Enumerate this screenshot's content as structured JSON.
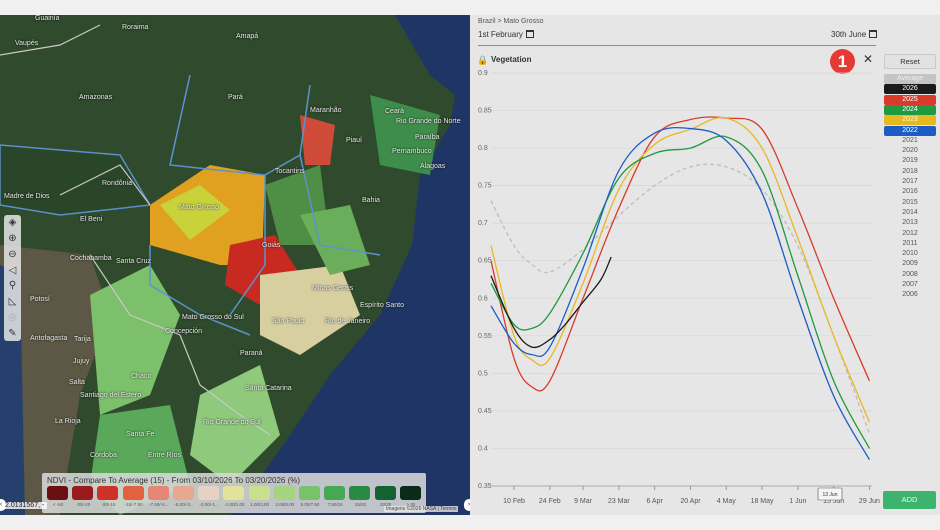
{
  "map": {
    "labels": [
      {
        "text": "Amazonas",
        "cls": "a"
      },
      {
        "text": "Pará",
        "cls": "b"
      },
      {
        "text": "Amapá",
        "cls": "c"
      },
      {
        "text": "Roraima",
        "cls": "d"
      },
      {
        "text": "Maranhão",
        "cls": "e"
      },
      {
        "text": "Piauí",
        "cls": "f"
      },
      {
        "text": "Ceará",
        "cls": "g"
      },
      {
        "text": "Rio Grande do Norte",
        "cls": "h"
      },
      {
        "text": "Paraíba",
        "cls": "i"
      },
      {
        "text": "Pernambuco",
        "cls": "j"
      },
      {
        "text": "Alagoas",
        "cls": "k"
      },
      {
        "text": "Bahia",
        "cls": "l"
      },
      {
        "text": "Tocantins",
        "cls": "m"
      },
      {
        "text": "Mato Grosso",
        "cls": "n"
      },
      {
        "text": "Rondônia",
        "cls": "o"
      },
      {
        "text": "El Beni",
        "cls": "p"
      },
      {
        "text": "Madre de Dios",
        "cls": "q"
      },
      {
        "text": "Goiás",
        "cls": "r"
      },
      {
        "text": "Minas Gerais",
        "cls": "s"
      },
      {
        "text": "Espírito Santo",
        "cls": "t"
      },
      {
        "text": "Mato Grosso do Sul",
        "cls": "u"
      },
      {
        "text": "São Paulo",
        "cls": "v"
      },
      {
        "text": "Rio de Janeiro",
        "cls": "w"
      },
      {
        "text": "Paraná",
        "cls": "x"
      },
      {
        "text": "Santa Catarina",
        "cls": "y"
      },
      {
        "text": "Rio Grande do Sul",
        "cls": "z"
      },
      {
        "text": "Santiago del Estero",
        "cls": "aa"
      },
      {
        "text": "Chaco",
        "cls": "ab"
      },
      {
        "text": "Santa Fe",
        "cls": "ac"
      },
      {
        "text": "Córdoba",
        "cls": "ad"
      },
      {
        "text": "La Rioja",
        "cls": "ae"
      },
      {
        "text": "Salta",
        "cls": "af"
      },
      {
        "text": "Jujuy",
        "cls": "ag"
      },
      {
        "text": "Antofagasta",
        "cls": "ah"
      },
      {
        "text": "Potosí",
        "cls": "ai"
      },
      {
        "text": "Tarija",
        "cls": "aj"
      },
      {
        "text": "Santa Cruz",
        "cls": "ak"
      },
      {
        "text": "Cochabamba",
        "cls": "al"
      },
      {
        "text": "Vaupés",
        "cls": "am"
      },
      {
        "text": "Guainía",
        "cls": "an"
      },
      {
        "text": "Concepción",
        "cls": "ao"
      },
      {
        "text": "Entre Ríos",
        "cls": "ap"
      }
    ],
    "toolbar": [
      "layers-icon",
      "zoom-in-icon",
      "zoom-out-icon",
      "navigate-icon",
      "search-icon",
      "measure-icon",
      "locate-icon",
      "draw-icon"
    ],
    "coords": "2.0131567, -",
    "attribution": "Imagens ©2026 NASA | Termos",
    "legend": {
      "title": "NDVI - Compare To Average (15) - From 03/10/2026 To 03/20/2026 (%)",
      "items": [
        {
          "label": "< -50",
          "color": "#6b0f12"
        },
        {
          "label": "-30/-20",
          "color": "#9b1a1c"
        },
        {
          "label": "-20/-15",
          "color": "#cc3228"
        },
        {
          "label": "-15/-7.50",
          "color": "#e0623f"
        },
        {
          "label": "-7.50/-5...",
          "color": "#e58677"
        },
        {
          "label": "-5.00/-3...",
          "color": "#e8a890"
        },
        {
          "label": "-3.00/-1...",
          "color": "#e6d2c4"
        },
        {
          "label": "-1.00/1.00",
          "color": "#e2e29a"
        },
        {
          "label": "1.00/3.00",
          "color": "#c9df8c"
        },
        {
          "label": "3.00/5.00",
          "color": "#a5d47e"
        },
        {
          "label": "5.00/7.50",
          "color": "#78c26a"
        },
        {
          "label": "7.50/15",
          "color": "#45a853"
        },
        {
          "label": "15/20",
          "color": "#2a8a43"
        },
        {
          "label": "20/30",
          "color": "#136332"
        },
        {
          "label": "> 30",
          "color": "#0b2a1a"
        }
      ]
    }
  },
  "panel": {
    "breadcrumb": "Brazil > Mato Grosso",
    "start_date": "1st February",
    "end_date": "30th June",
    "title": "Vegetation",
    "badge": "1",
    "close": "✕",
    "reset": "Reset",
    "add": "ADD",
    "tooltip": "13 Jun",
    "years": [
      {
        "label": "Average",
        "bg": "#c4c4c4",
        "fg": "#eeeeee"
      },
      {
        "label": "2026",
        "bg": "#1a1a1a",
        "fg": "#ffffff"
      },
      {
        "label": "2025",
        "bg": "#d93a2b",
        "fg": "#ffffff"
      },
      {
        "label": "2024",
        "bg": "#1f9a3e",
        "fg": "#ffffff"
      },
      {
        "label": "2023",
        "bg": "#e8b820",
        "fg": "#fff6cc"
      },
      {
        "label": "2022",
        "bg": "#1c5cc4",
        "fg": "#ffffff"
      },
      {
        "label": "2021"
      },
      {
        "label": "2020"
      },
      {
        "label": "2019"
      },
      {
        "label": "2018"
      },
      {
        "label": "2017"
      },
      {
        "label": "2016"
      },
      {
        "label": "2015"
      },
      {
        "label": "2014"
      },
      {
        "label": "2013"
      },
      {
        "label": "2012"
      },
      {
        "label": "2011"
      },
      {
        "label": "2010"
      },
      {
        "label": "2009"
      },
      {
        "label": "2008"
      },
      {
        "label": "2007"
      },
      {
        "label": "2006"
      }
    ]
  },
  "chart_data": {
    "type": "line",
    "title": "Vegetation",
    "ylim": [
      0.35,
      0.9
    ],
    "yticks": [
      "0.9",
      "0.85",
      "0.8",
      "0.75",
      "0.7",
      "0.65",
      "0.6",
      "0.55",
      "0.5",
      "0.45",
      "0.4",
      "0.35"
    ],
    "xlim": [
      "2026-02-01",
      "2026-06-30"
    ],
    "xticks": [
      {
        "label": "10 Feb",
        "date": "2026-02-10"
      },
      {
        "label": "24 Feb",
        "date": "2026-02-24"
      },
      {
        "label": "9 Mar",
        "date": "2026-03-09"
      },
      {
        "label": "23 Mar",
        "date": "2026-03-23"
      },
      {
        "label": "6 Apr",
        "date": "2026-04-06"
      },
      {
        "label": "20 Apr",
        "date": "2026-04-20"
      },
      {
        "label": "4 May",
        "date": "2026-05-04"
      },
      {
        "label": "18 May",
        "date": "2026-05-18"
      },
      {
        "label": "1 Jun",
        "date": "2026-06-01"
      },
      {
        "label": "15 Jun",
        "date": "2026-06-15"
      },
      {
        "label": "29 Jun",
        "date": "2026-06-29"
      }
    ],
    "grid": true,
    "legend": "right",
    "x": [
      "2026-02-01",
      "2026-02-10",
      "2026-02-17",
      "2026-02-24",
      "2026-03-09",
      "2026-03-23",
      "2026-04-06",
      "2026-04-20",
      "2026-05-04",
      "2026-05-18",
      "2026-06-01",
      "2026-06-15",
      "2026-06-29"
    ],
    "series": [
      {
        "name": "Average",
        "color": "#bdbdbd",
        "dashed": true,
        "values": [
          0.73,
          0.67,
          0.645,
          0.635,
          0.665,
          0.71,
          0.75,
          0.775,
          0.775,
          0.745,
          0.67,
          0.55,
          0.42
        ]
      },
      {
        "name": "2025",
        "color": "#d93a2b",
        "values": [
          0.65,
          0.52,
          0.482,
          0.49,
          0.6,
          0.72,
          0.815,
          0.838,
          0.84,
          0.825,
          0.72,
          0.6,
          0.49
        ]
      },
      {
        "name": "2023",
        "color": "#e8b820",
        "values": [
          0.67,
          0.55,
          0.518,
          0.52,
          0.62,
          0.745,
          0.805,
          0.825,
          0.84,
          0.8,
          0.68,
          0.55,
          0.435
        ]
      },
      {
        "name": "2024",
        "color": "#1f9a3e",
        "values": [
          0.62,
          0.565,
          0.56,
          0.58,
          0.66,
          0.76,
          0.793,
          0.8,
          0.815,
          0.77,
          0.63,
          0.49,
          0.4
        ]
      },
      {
        "name": "2022",
        "color": "#1c5cc4",
        "values": [
          0.59,
          0.54,
          0.525,
          0.535,
          0.64,
          0.77,
          0.82,
          0.826,
          0.81,
          0.74,
          0.6,
          0.47,
          0.385
        ]
      },
      {
        "name": "2026",
        "color": "#1a1a1a",
        "x": [
          "2026-02-01",
          "2026-02-10",
          "2026-02-17",
          "2026-02-24",
          "2026-03-02",
          "2026-03-09",
          "2026-03-16",
          "2026-03-20"
        ],
        "values": [
          0.63,
          0.56,
          0.535,
          0.545,
          0.565,
          0.595,
          0.625,
          0.655
        ]
      }
    ]
  }
}
